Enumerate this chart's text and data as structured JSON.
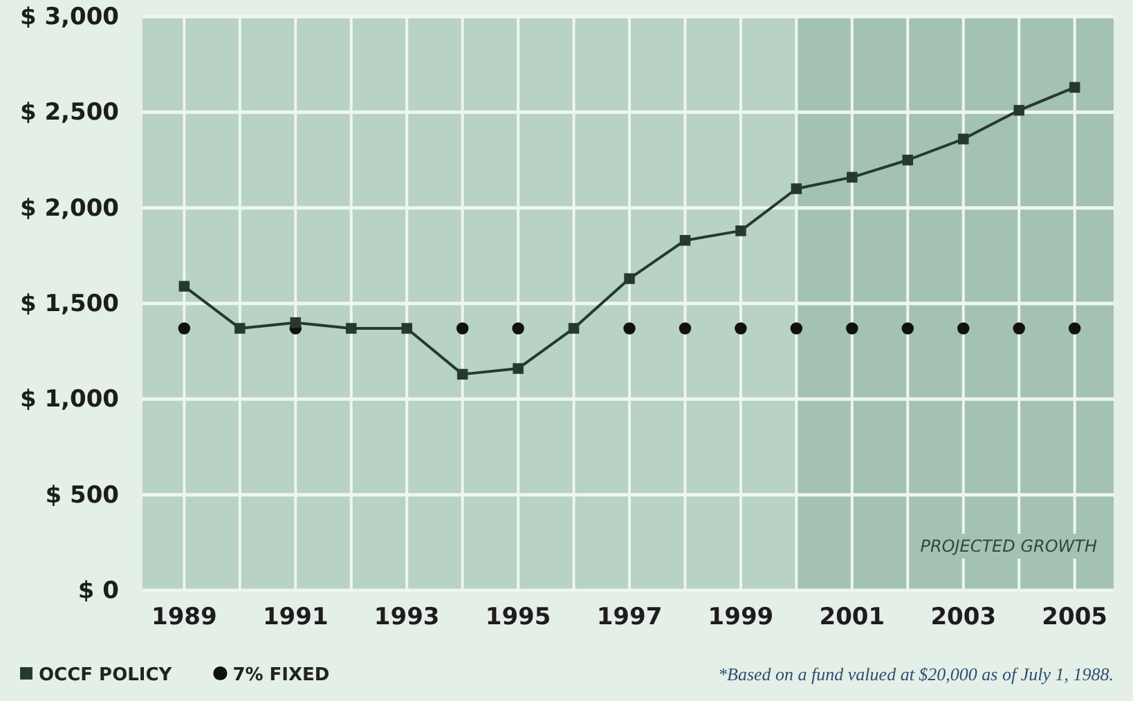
{
  "chart_data": {
    "type": "line",
    "x": [
      1989,
      1990,
      1991,
      1992,
      1993,
      1994,
      1995,
      1996,
      1997,
      1998,
      1999,
      2000,
      2001,
      2002,
      2003,
      2004,
      2005
    ],
    "series": [
      {
        "name": "OCCF POLICY",
        "color": "#26392f",
        "marker": "square",
        "values": [
          1590,
          1370,
          1400,
          1370,
          1370,
          1130,
          1160,
          1370,
          1630,
          1830,
          1880,
          2100,
          2160,
          2250,
          2360,
          2510,
          2630
        ]
      },
      {
        "name": "7% FIXED",
        "type": "scatter",
        "color": "#111111",
        "marker": "circle",
        "values": [
          1370,
          null,
          1370,
          null,
          null,
          1370,
          1370,
          null,
          1370,
          1370,
          1370,
          1370,
          1370,
          1370,
          1370,
          1370,
          1370
        ]
      }
    ],
    "xlim": [
      1988.25,
      2005.7
    ],
    "xticks": [
      1989,
      {
        "value": 1990,
        "label": null
      },
      1991,
      {
        "value": 1992,
        "label": null
      },
      1993,
      {
        "value": 1994,
        "label": null
      },
      1995,
      {
        "value": 1996,
        "label": null
      },
      1997,
      {
        "value": 1998,
        "label": null
      },
      1999,
      {
        "value": 2000,
        "label": null
      },
      2001,
      {
        "value": 2002,
        "label": null
      },
      2003,
      {
        "value": 2004,
        "label": null
      },
      2005
    ],
    "ylim": [
      0,
      3000
    ],
    "yticks": [
      {
        "value": 0,
        "label": "$ 0"
      },
      {
        "value": 500,
        "label": "$ 500"
      },
      {
        "value": 1000,
        "label": "$ 1,000"
      },
      {
        "value": 1500,
        "label": "$ 1,500"
      },
      {
        "value": 2000,
        "label": "$ 2,000"
      },
      {
        "value": 2500,
        "label": "$ 2,500"
      },
      {
        "value": 3000,
        "label": "$ 3,000"
      }
    ],
    "grid": true,
    "bands": [
      {
        "axis": "x",
        "from": 2000,
        "to": 2005.7,
        "label": "PROJECTED GROWTH",
        "color": "#a3c2b1"
      }
    ],
    "legend": "bottom left",
    "annotations": [
      "*Based on a fund valued at $20,000 as of July 1, 1988."
    ]
  }
}
